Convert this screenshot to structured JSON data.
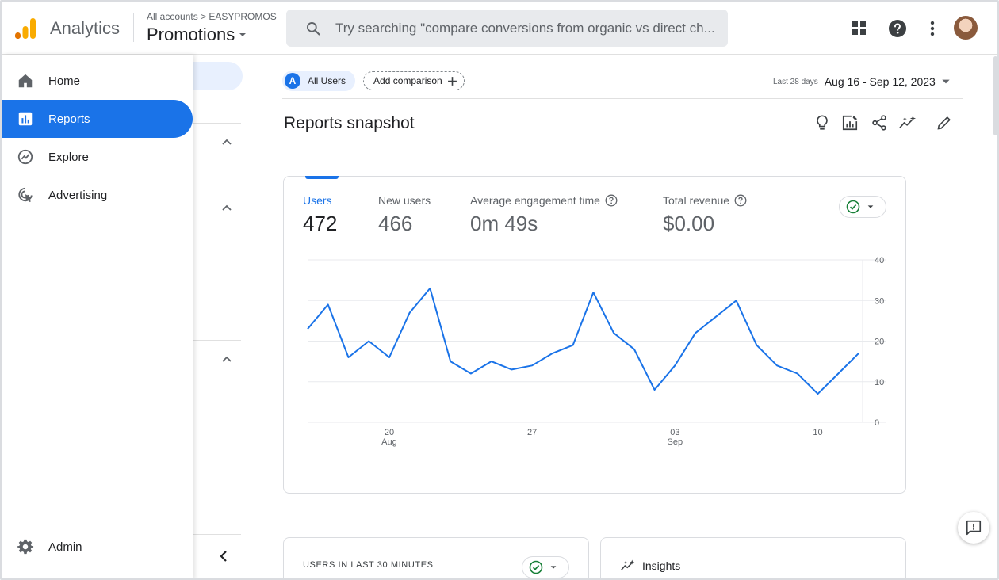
{
  "header": {
    "brand": "Analytics",
    "breadcrumb": "All accounts > EASYPROMOS",
    "property": "Promotions",
    "search_placeholder": "Try searching \"compare conversions from organic vs direct ch...",
    "logo_colors": [
      "#f9ab00",
      "#e37400",
      "#e37400"
    ]
  },
  "nav": {
    "items": [
      {
        "label": "Home",
        "icon": "home-icon"
      },
      {
        "label": "Reports",
        "icon": "reports-icon",
        "active": true
      },
      {
        "label": "Explore",
        "icon": "explore-icon"
      },
      {
        "label": "Advertising",
        "icon": "advertising-icon"
      }
    ],
    "admin": {
      "label": "Admin",
      "icon": "gear-icon"
    }
  },
  "comparison": {
    "segment_badge": "A",
    "segment_label": "All Users",
    "add_label": "Add comparison"
  },
  "date_range": {
    "period": "Last 28 days",
    "dates": "Aug 16 - Sep 12, 2023"
  },
  "page": {
    "title": "Reports snapshot"
  },
  "metrics": [
    {
      "name": "Users",
      "value": "472",
      "active": true
    },
    {
      "name": "New users",
      "value": "466"
    },
    {
      "name": "Average engagement time",
      "value": "0m 49s",
      "help": true
    },
    {
      "name": "Total revenue",
      "value": "$0.00",
      "help": true
    }
  ],
  "chart_data": {
    "type": "line",
    "series": [
      {
        "values": [
          23,
          29,
          16,
          20,
          16,
          27,
          33,
          15,
          12,
          15,
          13,
          14,
          17,
          19,
          32,
          22,
          18,
          8,
          14,
          22,
          26,
          30,
          19,
          14,
          12,
          7,
          12,
          17
        ]
      }
    ],
    "x_ticks": [
      {
        "index": 4,
        "label": "20",
        "sublabel": "Aug"
      },
      {
        "index": 11,
        "label": "27",
        "sublabel": ""
      },
      {
        "index": 18,
        "label": "03",
        "sublabel": "Sep"
      },
      {
        "index": 25,
        "label": "10",
        "sublabel": ""
      }
    ],
    "y_ticks": [
      0,
      10,
      20,
      30,
      40
    ],
    "ylim": [
      0,
      40
    ],
    "grid": true,
    "color": "#1a73e8"
  },
  "cards": {
    "realtime_title": "USERS IN LAST 30 MINUTES",
    "insights_title": "Insights"
  },
  "colors": {
    "accent": "#1a73e8",
    "success": "#188038"
  }
}
